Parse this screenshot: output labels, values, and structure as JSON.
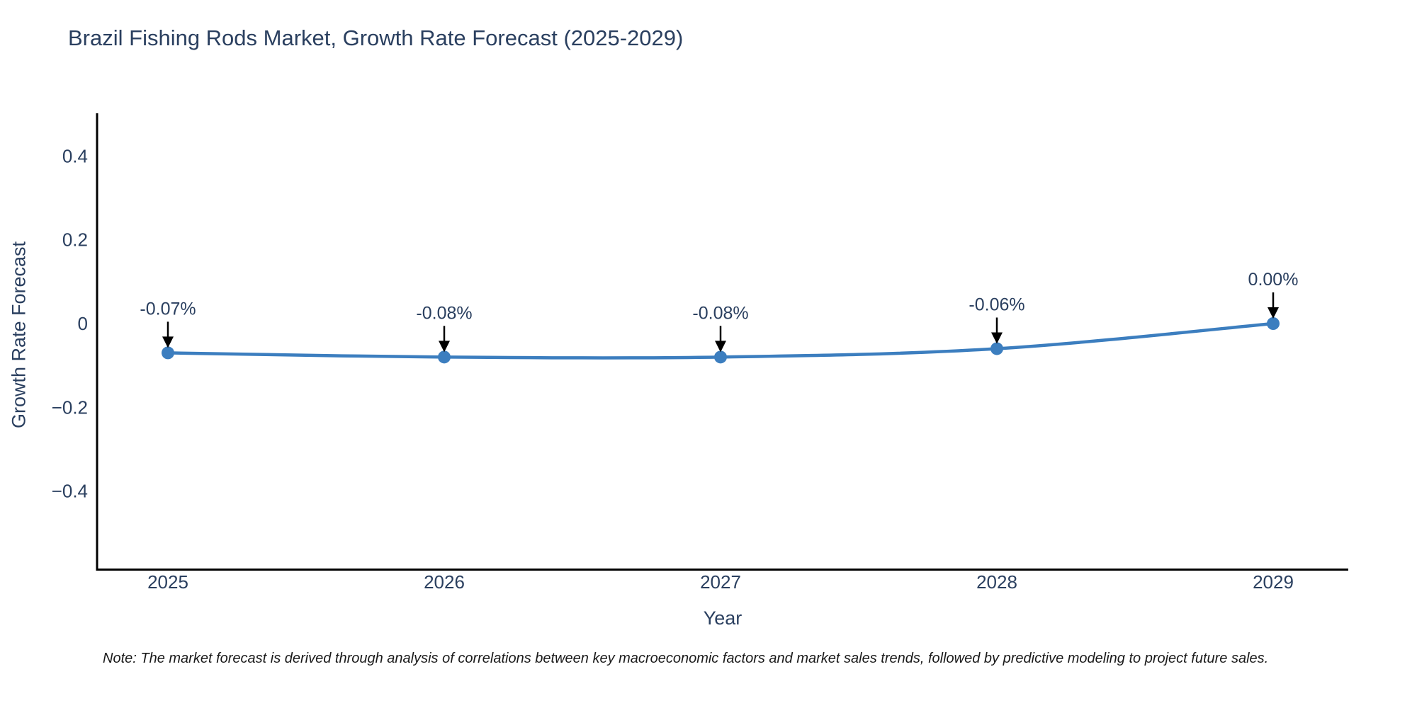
{
  "title": "Brazil Fishing Rods Market, Growth Rate Forecast (2025-2029)",
  "note": "Note: The market forecast is derived through analysis of correlations between key macroeconomic factors and market sales trends, followed by predictive modeling to project future sales.",
  "chart_data": {
    "type": "line",
    "title": "Brazil Fishing Rods Market, Growth Rate Forecast (2025-2029)",
    "categories": [
      "2025",
      "2026",
      "2027",
      "2028",
      "2029"
    ],
    "series": [
      {
        "name": "Growth Rate Forecast",
        "values": [
          -0.07,
          -0.08,
          -0.08,
          -0.06,
          0.0
        ]
      }
    ],
    "point_labels": [
      "-0.07%",
      "-0.08%",
      "-0.08%",
      "-0.06%",
      "0.00%"
    ],
    "xlabel": "Year",
    "ylabel": "Growth Rate Forecast",
    "ytick_values": [
      0.4,
      0.2,
      0,
      -0.2,
      -0.4
    ],
    "ytick_labels": [
      "0.4",
      "0.2",
      "0",
      "−0.2",
      "−0.4"
    ],
    "ylim": [
      -0.585,
      0.502
    ],
    "xlim_padding": "category",
    "line_shape": "spline",
    "grid": false,
    "legend_position": "none",
    "annotations_have_arrows": true,
    "colors": {
      "line": "#3c7ebf",
      "marker": "#3c7ebf",
      "axis": "#000000",
      "chart_text": "#2a3f5f",
      "annotation_text": "#2a3f5f",
      "arrow": "#000000",
      "note_text": "#1a1a1a",
      "background": "#ffffff"
    }
  }
}
